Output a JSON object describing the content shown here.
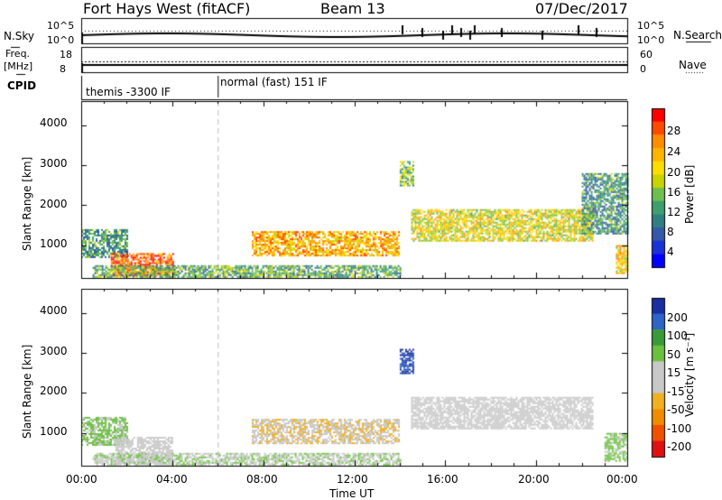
{
  "header": {
    "station": "Fort Hays West (fitACF)",
    "beam": "Beam 13",
    "date": "07/Dec/2017"
  },
  "noise_panel": {
    "left_label": "N.Sky",
    "right_label": "N.Search",
    "left_ticks": [
      "10^5",
      "10^0"
    ],
    "right_ticks": [
      "10^5",
      "10^0"
    ]
  },
  "freq_panel": {
    "left_label_top": "Freq.",
    "left_label_bottom": "[MHz]",
    "right_label": "Nave",
    "left_ticks": [
      "18",
      "8"
    ],
    "right_ticks": [
      "60",
      "0"
    ]
  },
  "cpid_panel": {
    "label": "CPID",
    "segments": [
      {
        "text": "themis -3300 IF",
        "start_hour": 0
      },
      {
        "text": "normal (fast) 151 IF",
        "start_hour": 6
      }
    ]
  },
  "chart_data": [
    {
      "type": "heatmap",
      "parameter": "Power",
      "ylabel": "Slant Range [km]",
      "colorbar_label": "Power [dB]",
      "colorbar_ticks": [
        "28",
        "24",
        "20",
        "16",
        "12",
        "8",
        "4"
      ],
      "colorbar_colors": [
        "#ff0000",
        "#ff4a00",
        "#ff8c00",
        "#ffb400",
        "#ffdd00",
        "#c8d400",
        "#6fbf50",
        "#3c9f6e",
        "#2f7f7f",
        "#3558a8",
        "#1a33d6",
        "#0000ff"
      ],
      "ylim": [
        180,
        4600
      ],
      "y_ticks": [
        1000,
        2000,
        3000,
        4000
      ],
      "regions": [
        {
          "t0": 0.0,
          "t1": 2.0,
          "r0": 700,
          "r1": 1400,
          "level": 10
        },
        {
          "t0": 1.3,
          "t1": 4.0,
          "r0": 250,
          "r1": 800,
          "level": 26
        },
        {
          "t0": 0.5,
          "t1": 14.0,
          "r0": 200,
          "r1": 500,
          "level": 12
        },
        {
          "t0": 7.5,
          "t1": 14.0,
          "r0": 750,
          "r1": 1350,
          "level": 22
        },
        {
          "t0": 14.5,
          "t1": 22.5,
          "r0": 1100,
          "r1": 1900,
          "level": 18
        },
        {
          "t0": 14.0,
          "t1": 14.6,
          "r0": 2500,
          "r1": 3100,
          "level": 14
        },
        {
          "t0": 22.0,
          "t1": 24.0,
          "r0": 1300,
          "r1": 2800,
          "level": 10
        },
        {
          "t0": 23.5,
          "t1": 24.0,
          "r0": 300,
          "r1": 1000,
          "level": 20
        }
      ]
    },
    {
      "type": "heatmap",
      "parameter": "Velocity",
      "ylabel": "Slant Range [km]",
      "xlabel": "Time UT",
      "colorbar_label": "Velocity [m s⁻¹]",
      "colorbar_ticks": [
        "200",
        "100",
        "50",
        "15",
        "-15",
        "-50",
        "-100",
        "-200"
      ],
      "colorbar_colors": [
        "#1a2fa0",
        "#2c64c8",
        "#3a9a3a",
        "#6cc040",
        "#c8c8c8",
        "#c8c8c8",
        "#f0b020",
        "#f08c00",
        "#f05000",
        "#e01010"
      ],
      "ylim": [
        180,
        4600
      ],
      "y_ticks": [
        1000,
        2000,
        3000,
        4000
      ],
      "x_ticks": [
        "00:00",
        "04:00",
        "08:00",
        "12:00",
        "16:00",
        "20:00",
        "00:00"
      ],
      "regions": [
        {
          "t0": 0.0,
          "t1": 2.0,
          "r0": 700,
          "r1": 1400,
          "vel": 60
        },
        {
          "t0": 1.5,
          "t1": 4.0,
          "r0": 250,
          "r1": 900,
          "vel": 0
        },
        {
          "t0": 0.5,
          "t1": 14.0,
          "r0": 200,
          "r1": 500,
          "vel": 40
        },
        {
          "t0": 7.5,
          "t1": 14.0,
          "r0": 750,
          "r1": 1350,
          "vel": -40
        },
        {
          "t0": 14.5,
          "t1": 22.5,
          "r0": 1100,
          "r1": 1900,
          "vel": 0
        },
        {
          "t0": 14.0,
          "t1": 14.6,
          "r0": 2500,
          "r1": 3100,
          "vel": 200
        },
        {
          "t0": 23.0,
          "t1": 24.0,
          "r0": 300,
          "r1": 1000,
          "vel": 60
        }
      ]
    }
  ]
}
